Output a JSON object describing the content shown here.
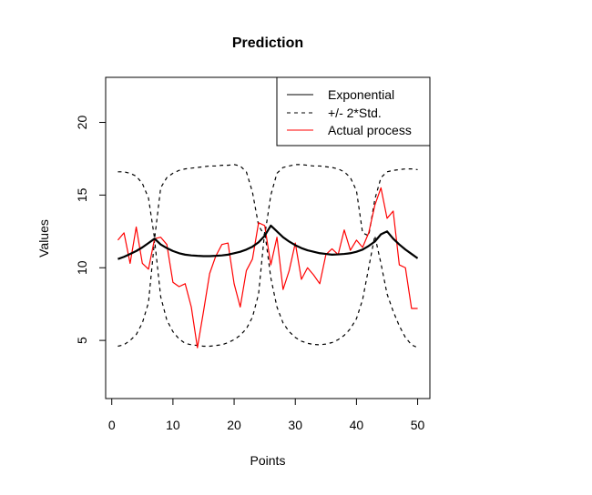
{
  "chart_data": {
    "type": "line",
    "title": "Prediction",
    "xlabel": "Points",
    "ylabel": "Values",
    "xlim": [
      -1,
      52
    ],
    "ylim": [
      1,
      23.1
    ],
    "xticks": [
      0,
      10,
      20,
      30,
      40,
      50
    ],
    "yticks": [
      5,
      10,
      15,
      20
    ],
    "legend_position": "top-right",
    "legend": [
      {
        "label": "Exponential",
        "style": "solid",
        "color": "#000000"
      },
      {
        "label": "+/- 2*Std.",
        "style": "dashed",
        "color": "#000000"
      },
      {
        "label": "Actual process",
        "style": "solid",
        "color": "#ff0000"
      }
    ],
    "x": [
      1,
      2,
      3,
      4,
      5,
      6,
      7,
      8,
      9,
      10,
      11,
      12,
      13,
      14,
      15,
      16,
      17,
      18,
      19,
      20,
      21,
      22,
      23,
      24,
      25,
      26,
      27,
      28,
      29,
      30,
      31,
      32,
      33,
      34,
      35,
      36,
      37,
      38,
      39,
      40,
      41,
      42,
      43,
      44,
      45,
      46,
      47,
      48,
      49,
      50
    ],
    "series": [
      {
        "name": "Exponential",
        "style": "solid",
        "width": 2.2,
        "color": "#000000",
        "values": [
          10.6,
          10.75,
          10.95,
          11.15,
          11.4,
          11.7,
          12.0,
          11.6,
          11.35,
          11.15,
          11.0,
          10.9,
          10.85,
          10.82,
          10.8,
          10.8,
          10.82,
          10.85,
          10.9,
          11.0,
          11.1,
          11.25,
          11.45,
          11.75,
          12.2,
          12.9,
          12.5,
          12.1,
          11.8,
          11.55,
          11.35,
          11.2,
          11.1,
          11.0,
          10.95,
          10.9,
          10.92,
          10.95,
          11.0,
          11.1,
          11.25,
          11.5,
          11.8,
          12.3,
          12.5,
          12.0,
          11.6,
          11.25,
          10.95,
          10.65
        ]
      },
      {
        "name": "+/- 2*Std.",
        "style": "dashed",
        "width": 1.2,
        "color": "#000000",
        "values": [
          16.6,
          16.6,
          16.5,
          16.3,
          15.8,
          14.8,
          12.0,
          15.5,
          16.2,
          16.5,
          16.7,
          16.8,
          16.85,
          16.9,
          16.95,
          17.0,
          17.0,
          17.05,
          17.05,
          17.1,
          17.0,
          16.6,
          15.2,
          12.9,
          12.2,
          15.0,
          16.5,
          16.9,
          17.0,
          17.1,
          17.1,
          17.05,
          17.0,
          17.0,
          16.95,
          16.9,
          16.8,
          16.6,
          16.2,
          15.3,
          12.4,
          12.2,
          14.7,
          16.2,
          16.6,
          16.7,
          16.75,
          16.8,
          16.8,
          16.75
        ]
      },
      {
        "name": "-2*Std.",
        "style": "dashed",
        "width": 1.2,
        "color": "#000000",
        "values": [
          4.6,
          4.7,
          5.0,
          5.4,
          6.2,
          7.6,
          11.9,
          8.0,
          6.4,
          5.6,
          5.1,
          4.8,
          4.7,
          4.65,
          4.6,
          4.6,
          4.65,
          4.7,
          4.85,
          5.05,
          5.35,
          5.8,
          6.6,
          8.2,
          12.5,
          9.3,
          7.3,
          6.2,
          5.6,
          5.2,
          4.95,
          4.8,
          4.72,
          4.7,
          4.75,
          4.85,
          5.05,
          5.35,
          5.8,
          6.5,
          7.8,
          10.0,
          12.2,
          10.3,
          8.2,
          7.0,
          6.0,
          5.2,
          4.7,
          4.5
        ]
      },
      {
        "name": "Actual process",
        "style": "solid",
        "width": 1.2,
        "color": "#ff0000",
        "values": [
          11.9,
          12.4,
          10.3,
          12.8,
          10.3,
          9.9,
          12.0,
          12.1,
          11.6,
          9.0,
          8.7,
          8.9,
          7.3,
          4.5,
          7.0,
          9.6,
          10.8,
          11.6,
          11.7,
          8.9,
          7.3,
          9.8,
          10.6,
          13.1,
          12.9,
          10.2,
          12.1,
          8.5,
          9.8,
          11.7,
          9.2,
          10.0,
          9.5,
          8.9,
          10.9,
          11.3,
          10.9,
          12.6,
          11.2,
          11.9,
          11.4,
          12.4,
          14.3,
          15.5,
          13.4,
          13.9,
          10.2,
          10.0,
          7.2,
          7.2
        ]
      }
    ]
  }
}
